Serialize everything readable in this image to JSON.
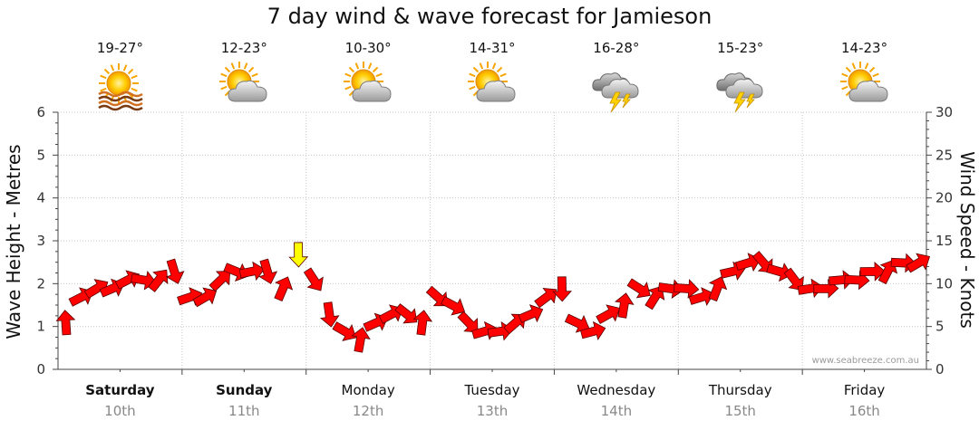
{
  "chart_data": {
    "type": "scatter",
    "title": "7 day wind & wave forecast for Jamieson",
    "ylabel_left": "Wave Height - Metres",
    "ylabel_right": "Wind Speed - Knots",
    "ylim_left": [
      0,
      6
    ],
    "ylim_right": [
      0,
      30
    ],
    "left_ticks": [
      "0",
      "1",
      "2",
      "3",
      "4",
      "5",
      "6"
    ],
    "right_ticks": [
      "0",
      "5",
      "10",
      "15",
      "20",
      "25",
      "30"
    ],
    "grid": true,
    "credit": "www.seabreeze.com.au",
    "days": [
      {
        "name": "Saturday",
        "date": "10th",
        "temp": "19-27°",
        "icon": "sun-haze-icon",
        "bold": true
      },
      {
        "name": "Sunday",
        "date": "11th",
        "temp": "12-23°",
        "icon": "sun-cloud-icon",
        "bold": true
      },
      {
        "name": "Monday",
        "date": "12th",
        "temp": "10-30°",
        "icon": "sun-cloud-icon",
        "bold": false
      },
      {
        "name": "Tuesday",
        "date": "13th",
        "temp": "14-31°",
        "icon": "sun-cloud-icon",
        "bold": false
      },
      {
        "name": "Wednesday",
        "date": "14th",
        "temp": "16-28°",
        "icon": "storm-cloud-icon",
        "bold": false
      },
      {
        "name": "Thursday",
        "date": "15th",
        "temp": "15-23°",
        "icon": "storm-cloud-icon",
        "bold": false
      },
      {
        "name": "Friday",
        "date": "16th",
        "temp": "14-23°",
        "icon": "sun-cloud-icon",
        "bold": false
      }
    ],
    "series": [
      {
        "name": "Wind Speed - Knots",
        "x_start_day": 0,
        "hours_step": 3,
        "values": [
          5,
          8,
          9,
          9,
          10,
          10,
          10,
          11,
          8,
          8,
          10,
          11,
          11,
          11,
          9,
          13,
          10,
          6,
          4,
          3,
          5,
          6,
          6,
          5,
          8,
          7,
          5,
          4,
          4,
          5,
          6,
          8,
          9,
          5,
          4,
          6,
          7,
          9,
          8,
          9,
          9,
          8,
          9,
          11,
          12,
          12,
          11,
          10,
          9,
          9,
          10,
          10,
          11,
          11,
          12,
          12
        ]
      }
    ],
    "colors": {
      "wind_arrow": "#ff0000",
      "wind_arrow_highlight": "#ffff00",
      "grid": "#c8c8c8",
      "axis": "#444444"
    }
  }
}
